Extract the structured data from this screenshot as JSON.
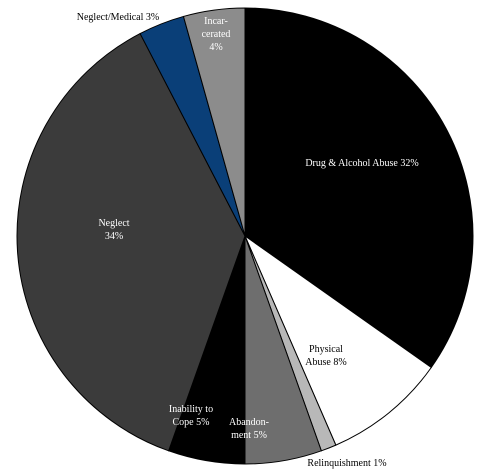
{
  "chart_data": {
    "type": "pie",
    "start_angle_deg": 0,
    "direction": "clockwise",
    "slices": [
      {
        "label": "Drug & Alcohol Abuse",
        "value": 32,
        "display": "Drug & Alcohol Abuse  32%",
        "color": "#000000"
      },
      {
        "label": "Physical Abuse",
        "value": 8,
        "display": "Physical\nAbuse 8%",
        "color": "#ffffff"
      },
      {
        "label": "Relinquishment",
        "value": 1,
        "display": "Relinquishment 1%",
        "color": "#b8b8b8"
      },
      {
        "label": "Abandonment",
        "value": 5,
        "display": "Abandon-\nment 5%",
        "color": "#6e6e6e"
      },
      {
        "label": "Inability to Cope",
        "value": 5,
        "display": "Inability to\nCope 5%",
        "color": "#000000"
      },
      {
        "label": "Neglect",
        "value": 34,
        "display": "Neglect\n34%",
        "color": "#3b3b3b"
      },
      {
        "label": "Neglect/Medical",
        "value": 3,
        "display": "Neglect/Medical 3%",
        "color": "#0a3f78"
      },
      {
        "label": "Incarcerated",
        "value": 4,
        "display": "Incar-\ncerated\n4%",
        "color": "#8c8c8c"
      }
    ]
  }
}
